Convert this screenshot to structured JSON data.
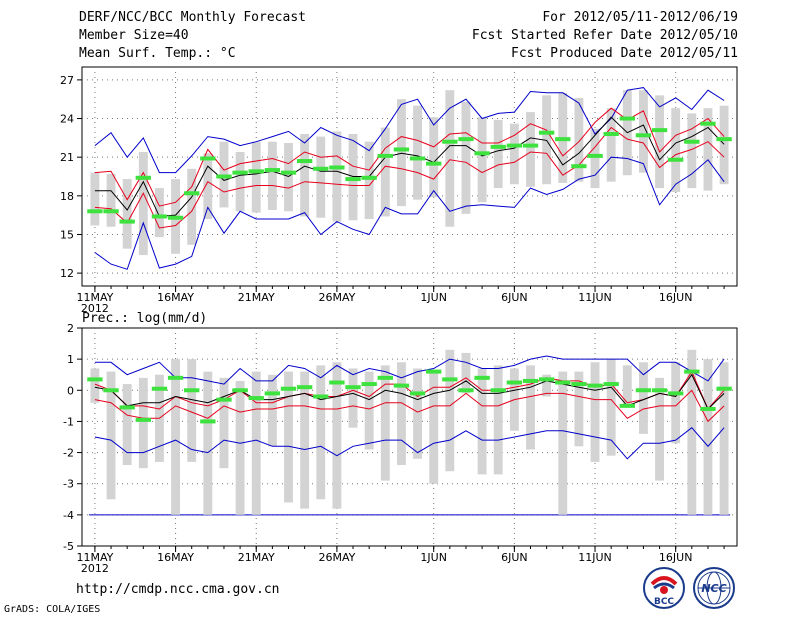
{
  "header": {
    "title": "DERF/NCC/BCC Monthly Forecast",
    "member_size": "Member Size=40",
    "variable": "Mean Surf. Temp.: °C",
    "period": "For 2012/05/11-2012/06/19",
    "started": "Fcst Started Refer Date 2012/05/10",
    "produced": "Fcst Produced Date 2012/05/11"
  },
  "footer": {
    "url": "http://cmdp.ncc.cma.gov.cn",
    "credit": "GrADS: COLA/IGES",
    "logo_bcc_text": "BCC",
    "logo_ncc_text": "NCC"
  },
  "chart_data": [
    {
      "type": "line",
      "title": "Mean Surf. Temp.: °C",
      "ylim": [
        11,
        28
      ],
      "yticks": [
        12,
        15,
        18,
        21,
        24,
        27
      ],
      "x_days": 40,
      "xticks": [
        {
          "day": 1,
          "label": "11MAY"
        },
        {
          "day": 6,
          "label": "16MAY"
        },
        {
          "day": 11,
          "label": "21MAY"
        },
        {
          "day": 16,
          "label": "26MAY"
        },
        {
          "day": 22,
          "label": "1JUN"
        },
        {
          "day": 27,
          "label": "6JUN"
        },
        {
          "day": 32,
          "label": "11JUN"
        },
        {
          "day": 37,
          "label": "16JUN"
        }
      ],
      "year_label": "2012",
      "grid": true,
      "colors": {
        "mean": "#000000",
        "inner": "#e8001c",
        "outer": "#0000cc",
        "bar": "#d3d3d3",
        "obs": "#3ee23e"
      },
      "series": [
        {
          "name": "bar_low",
          "values": [
            15.7,
            15.6,
            13.9,
            13.4,
            14.8,
            13.5,
            14.2,
            16.2,
            17.1,
            16.8,
            16.7,
            16.9,
            16.8,
            16.4,
            16.3,
            16.0,
            16.1,
            16.2,
            16.4,
            17.2,
            17.7,
            17.9,
            15.6,
            16.6,
            17.5,
            18.6,
            18.9,
            18.7,
            18.9,
            19.0,
            19.1,
            18.6,
            19.1,
            19.6,
            19.8,
            18.6,
            18.3,
            18.6,
            18.4,
            18.9
          ]
        },
        {
          "name": "bar_high",
          "values": [
            19.8,
            19.7,
            19.3,
            21.4,
            18.6,
            19.3,
            20.1,
            21.3,
            22.2,
            21.4,
            22.2,
            22.2,
            22.1,
            22.8,
            22.6,
            23.0,
            22.8,
            22.2,
            23.3,
            25.5,
            25.0,
            24.1,
            26.2,
            25.3,
            24.1,
            23.9,
            23.6,
            24.5,
            25.8,
            26.0,
            25.6,
            23.2,
            24.8,
            26.2,
            26.2,
            25.8,
            24.8,
            24.4,
            24.8,
            25.0
          ]
        },
        {
          "name": "outer_high",
          "values": [
            21.9,
            22.9,
            21.0,
            22.5,
            19.8,
            19.8,
            21.1,
            22.6,
            22.4,
            21.9,
            22.2,
            22.6,
            23.0,
            22.1,
            23.3,
            22.7,
            22.3,
            21.5,
            23.2,
            25.1,
            25.5,
            23.5,
            24.8,
            25.5,
            24.0,
            24.4,
            24.5,
            26.1,
            26.0,
            26.0,
            25.2,
            22.8,
            24.0,
            26.2,
            26.4,
            24.9,
            25.6,
            24.7,
            26.2,
            25.4
          ]
        },
        {
          "name": "inner_high",
          "values": [
            19.8,
            19.9,
            17.7,
            19.8,
            17.2,
            17.5,
            18.7,
            21.6,
            20.0,
            20.5,
            20.7,
            20.9,
            20.5,
            21.4,
            21.0,
            21.1,
            20.3,
            20.0,
            21.7,
            22.6,
            22.3,
            21.8,
            22.8,
            22.9,
            22.1,
            22.1,
            22.7,
            23.6,
            23.1,
            21.1,
            22.2,
            23.7,
            24.8,
            23.9,
            24.6,
            21.4,
            22.7,
            23.2,
            24.0,
            22.6
          ]
        },
        {
          "name": "mean",
          "values": [
            18.4,
            18.4,
            16.9,
            19.1,
            16.4,
            16.5,
            17.9,
            20.3,
            19.2,
            19.6,
            19.7,
            19.9,
            19.5,
            20.3,
            19.9,
            19.9,
            19.5,
            19.5,
            21.0,
            21.3,
            21.1,
            20.6,
            21.9,
            21.9,
            21.1,
            21.5,
            21.7,
            22.5,
            22.3,
            20.4,
            21.3,
            22.7,
            24.1,
            22.9,
            23.5,
            20.8,
            22.1,
            22.6,
            23.3,
            22.0
          ]
        },
        {
          "name": "inner_low",
          "values": [
            17.1,
            17.0,
            15.9,
            18.2,
            15.5,
            15.7,
            16.8,
            19.1,
            18.3,
            18.6,
            18.8,
            18.8,
            18.6,
            19.1,
            19.0,
            18.9,
            18.8,
            18.8,
            20.3,
            20.1,
            19.8,
            19.3,
            20.8,
            20.6,
            19.8,
            20.4,
            20.6,
            21.4,
            21.3,
            19.6,
            20.4,
            21.8,
            23.3,
            22.4,
            22.1,
            20.2,
            21.2,
            21.6,
            22.2,
            21.0
          ]
        },
        {
          "name": "outer_low",
          "values": [
            13.6,
            12.7,
            12.3,
            15.9,
            12.4,
            12.7,
            13.3,
            17.1,
            15.1,
            16.8,
            16.2,
            16.2,
            16.2,
            16.7,
            15.0,
            16.0,
            15.4,
            15.0,
            17.1,
            16.6,
            16.6,
            18.4,
            16.8,
            17.2,
            17.3,
            17.2,
            17.1,
            18.6,
            18.1,
            18.5,
            19.3,
            19.6,
            21.0,
            20.9,
            20.5,
            17.3,
            18.9,
            19.7,
            20.8,
            19.1
          ]
        },
        {
          "name": "observed",
          "values": [
            16.8,
            16.8,
            16.0,
            19.4,
            16.4,
            16.3,
            18.2,
            20.9,
            19.5,
            19.8,
            19.9,
            20.0,
            19.8,
            20.7,
            20.1,
            20.2,
            19.3,
            19.4,
            21.1,
            21.6,
            20.9,
            20.5,
            22.2,
            22.4,
            21.3,
            21.8,
            21.9,
            21.9,
            22.9,
            22.4,
            20.3,
            21.1,
            22.8,
            24.0,
            22.7,
            23.1,
            20.8,
            22.2,
            23.6,
            22.4
          ]
        }
      ]
    },
    {
      "type": "line",
      "title": "Prec.: log(mm/d)",
      "ylim": [
        -5,
        2
      ],
      "yticks": [
        -5,
        -4,
        -3,
        -2,
        -1,
        0,
        1,
        2
      ],
      "x_days": 40,
      "xticks": [
        {
          "day": 1,
          "label": "11MAY"
        },
        {
          "day": 6,
          "label": "16MAY"
        },
        {
          "day": 11,
          "label": "21MAY"
        },
        {
          "day": 16,
          "label": "26MAY"
        },
        {
          "day": 22,
          "label": "1JUN"
        },
        {
          "day": 27,
          "label": "6JUN"
        },
        {
          "day": 32,
          "label": "11JUN"
        },
        {
          "day": 37,
          "label": "16JUN"
        }
      ],
      "year_label": "2012",
      "grid": true,
      "baseline": -4,
      "colors": {
        "mean": "#000000",
        "inner": "#e8001c",
        "outer": "#0000cc",
        "bar": "#d3d3d3",
        "obs": "#3ee23e",
        "baseline": "#0000cc"
      },
      "series": [
        {
          "name": "bar_low",
          "values": [
            -0.4,
            -3.5,
            -2.4,
            -2.5,
            -2.3,
            -4.0,
            -2.3,
            -4.0,
            -2.5,
            -4.0,
            -4.0,
            -1.8,
            -3.6,
            -3.8,
            -3.5,
            -3.8,
            -1.2,
            -1.9,
            -2.9,
            -2.4,
            -2.2,
            -3.0,
            -2.6,
            -0.1,
            -2.7,
            -2.7,
            -1.3,
            -1.9,
            -0.2,
            -4.0,
            -1.8,
            -2.3,
            -2.1,
            -0.5,
            -1.4,
            -2.9,
            -1.7,
            -4.0,
            -4.0,
            -4.0
          ]
        },
        {
          "name": "bar_high",
          "values": [
            0.7,
            0.6,
            0.2,
            0.4,
            0.5,
            1.0,
            1.0,
            0.6,
            0.4,
            0.3,
            0.6,
            0.5,
            0.6,
            0.6,
            0.8,
            0.9,
            0.7,
            0.6,
            0.8,
            0.9,
            0.7,
            0.6,
            1.3,
            1.2,
            0.7,
            0.8,
            0.7,
            0.8,
            0.5,
            0.6,
            0.6,
            0.9,
            1.0,
            0.8,
            0.9,
            0.4,
            0.9,
            1.3,
            1.0,
            0.9
          ]
        },
        {
          "name": "outer_high",
          "values": [
            0.9,
            0.9,
            0.5,
            0.7,
            0.9,
            0.4,
            0.4,
            0.3,
            0.2,
            0.7,
            0.3,
            0.3,
            0.8,
            0.7,
            0.4,
            0.8,
            0.5,
            0.7,
            0.6,
            0.4,
            0.6,
            0.7,
            1.0,
            0.9,
            0.7,
            0.7,
            0.8,
            1.0,
            1.1,
            1.0,
            1.0,
            1.0,
            1.0,
            1.0,
            0.5,
            0.9,
            0.9,
            0.6,
            0.3,
            1.0
          ]
        },
        {
          "name": "inner_high",
          "values": [
            0.2,
            0.0,
            -0.5,
            -0.5,
            -0.6,
            -0.2,
            -0.4,
            -0.5,
            -0.3,
            0.0,
            -0.4,
            -0.4,
            -0.2,
            -0.1,
            -0.2,
            -0.2,
            0.0,
            -0.2,
            0.2,
            0.2,
            -0.2,
            0.1,
            0.1,
            0.4,
            0.0,
            0.0,
            0.1,
            0.2,
            0.4,
            0.3,
            0.3,
            0.1,
            0.2,
            -0.4,
            -0.3,
            -0.1,
            -0.2,
            0.6,
            -0.6,
            0.0
          ]
        },
        {
          "name": "mean",
          "values": [
            0.1,
            0.0,
            -0.5,
            -0.4,
            -0.4,
            -0.2,
            -0.3,
            -0.4,
            -0.2,
            0.0,
            -0.3,
            -0.3,
            -0.2,
            -0.1,
            -0.3,
            -0.2,
            -0.1,
            -0.3,
            0.0,
            -0.1,
            -0.3,
            -0.1,
            0.0,
            0.3,
            -0.1,
            -0.1,
            0.0,
            0.1,
            0.3,
            0.2,
            0.1,
            0.0,
            0.1,
            -0.5,
            -0.3,
            -0.1,
            -0.2,
            0.5,
            -0.6,
            -0.1
          ]
        },
        {
          "name": "inner_low",
          "values": [
            -0.3,
            -0.4,
            -0.8,
            -0.9,
            -0.9,
            -0.5,
            -0.7,
            -0.9,
            -0.5,
            -0.7,
            -0.6,
            -0.6,
            -0.5,
            -0.5,
            -0.6,
            -0.6,
            -0.5,
            -0.6,
            -0.4,
            -0.4,
            -0.7,
            -0.5,
            -0.5,
            -0.1,
            -0.5,
            -0.5,
            -0.3,
            -0.2,
            -0.1,
            -0.1,
            -0.2,
            -0.3,
            -0.3,
            -0.9,
            -0.6,
            -0.5,
            -0.5,
            0.0,
            -1.0,
            -0.5
          ]
        },
        {
          "name": "outer_low",
          "values": [
            -1.5,
            -1.6,
            -2.0,
            -2.0,
            -1.8,
            -1.6,
            -1.9,
            -2.0,
            -1.6,
            -1.7,
            -1.6,
            -1.8,
            -1.8,
            -1.9,
            -1.8,
            -2.1,
            -1.8,
            -1.7,
            -1.6,
            -1.6,
            -2.0,
            -1.7,
            -1.6,
            -1.3,
            -1.6,
            -1.6,
            -1.5,
            -1.4,
            -1.3,
            -1.3,
            -1.4,
            -1.5,
            -1.6,
            -2.2,
            -1.7,
            -1.7,
            -1.6,
            -1.2,
            -1.8,
            -1.2
          ]
        },
        {
          "name": "observed",
          "values": [
            0.35,
            0.0,
            -0.55,
            -0.95,
            0.05,
            0.4,
            0.0,
            -1.0,
            -0.3,
            0.0,
            -0.25,
            -0.1,
            0.05,
            0.1,
            -0.2,
            0.25,
            0.1,
            0.2,
            0.4,
            0.15,
            -0.1,
            0.6,
            0.35,
            0.0,
            0.4,
            0.0,
            0.25,
            0.3,
            0.35,
            0.25,
            0.2,
            0.15,
            0.2,
            -0.5,
            0.0,
            0.0,
            -0.1,
            0.6,
            -0.6,
            0.05
          ]
        }
      ]
    }
  ]
}
